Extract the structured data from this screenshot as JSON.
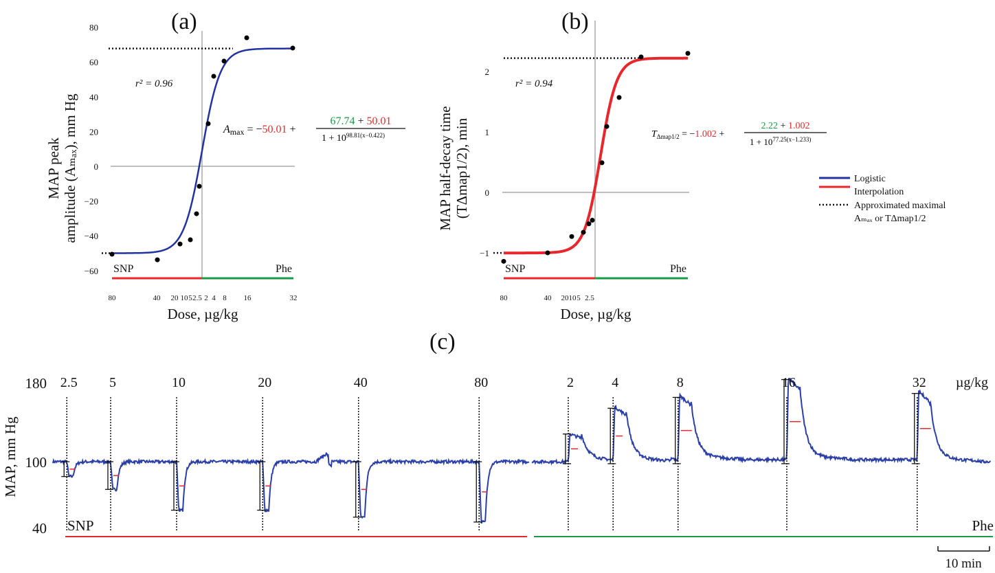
{
  "colors": {
    "logistic": "#2233a0",
    "interpolation": "#e8262b",
    "snp": "#e8262b",
    "phe": "#1a9a47",
    "trace": "#2a3fa8"
  },
  "legend": {
    "logistic": "Logistic",
    "interpolation": "Interpolation",
    "approx_line1": "Approximated maximal",
    "approx_line2": "Aₘₐₓ or TΔmap1/2"
  },
  "chart_data": [
    {
      "panel": "(a)",
      "type": "scatter+line",
      "ylabel_line1": "MAP peak",
      "ylabel_line2": "amplitude (Aₘₐₓ), mm Hg",
      "xlabel": "Dose, µg/kg",
      "yticks": [
        80,
        60,
        40,
        20,
        0,
        -20,
        -40,
        -60
      ],
      "ylim": [
        -60,
        80
      ],
      "xticks": [
        {
          "label": "80",
          "dose": -80
        },
        {
          "label": "40",
          "dose": -40
        },
        {
          "label": "20",
          "dose": -20
        },
        {
          "label": "10",
          "dose": -10
        },
        {
          "label": "5",
          "dose": -5
        },
        {
          "label": "2.5",
          "dose": -2.5
        },
        {
          "label": "2",
          "dose": 2
        },
        {
          "label": "4",
          "dose": 4
        },
        {
          "label": "8",
          "dose": 8
        },
        {
          "label": "16",
          "dose": 16
        },
        {
          "label": "32",
          "dose": 32
        }
      ],
      "points": [
        {
          "dose": -80,
          "y": -50.6
        },
        {
          "dose": -40,
          "y": -53.8
        },
        {
          "dose": -20,
          "y": -44.7
        },
        {
          "dose": -10,
          "y": -42.3
        },
        {
          "dose": -5,
          "y": -27.3
        },
        {
          "dose": -2.5,
          "y": -11.5
        },
        {
          "dose": 2,
          "y": 24.5
        },
        {
          "dose": 4,
          "y": 51.8
        },
        {
          "dose": 8,
          "y": 60.5
        },
        {
          "dose": 16,
          "y": 73.9
        },
        {
          "dose": 32,
          "y": 68
        }
      ],
      "fit": {
        "min": -50.01,
        "max": 67.74
      },
      "r2": "r² = 0.96",
      "eq": {
        "lhs": "A",
        "lhs_sub": "max",
        "eq": " = −",
        "a": "50.01",
        "plus": " + ",
        "num_a": "67.74",
        "num_plus": " + ",
        "num_b": "50.01",
        "den": "1 + 10",
        "exp": "98.81(x−0.422)"
      },
      "snp": "SNP",
      "phe": "Phe"
    },
    {
      "panel": "(b)",
      "type": "scatter+line",
      "ylabel_line1": "MAP half-decay time",
      "ylabel_line2": "(TΔmap1/2), min",
      "xlabel": "Dose, µg/kg",
      "yticks": [
        2,
        1,
        0,
        -1
      ],
      "ylim": [
        -1.2,
        2.4
      ],
      "xticks": [
        {
          "label": "80",
          "dose": -80
        },
        {
          "label": "40",
          "dose": -40
        },
        {
          "label": "20",
          "dose": -20
        },
        {
          "label": "10",
          "dose": -10
        },
        {
          "label": "5",
          "dose": -5
        },
        {
          "label": "2.5",
          "dose": -2.5
        }
      ],
      "points": [
        {
          "dose": -80,
          "y": -1.14
        },
        {
          "dose": -40,
          "y": -1.0
        },
        {
          "dose": -20,
          "y": -0.73
        },
        {
          "dose": -10,
          "y": -0.66
        },
        {
          "dose": -5,
          "y": -0.52
        },
        {
          "dose": -2.5,
          "y": -0.46
        },
        {
          "dose": 2,
          "y": 0.49
        },
        {
          "dose": 4,
          "y": 1.09
        },
        {
          "dose": 8,
          "y": 1.57
        },
        {
          "dose": 16,
          "y": 2.24
        },
        {
          "dose": 32,
          "y": 2.3
        }
      ],
      "fit": {
        "min": -1.002,
        "max": 2.22
      },
      "r2": "r² = 0.94",
      "eq": {
        "lhs": "T",
        "lhs_sub": "Δmap1/2",
        "eq": " = −",
        "a": "1.002",
        "plus": " + ",
        "num_a": "2.22",
        "num_plus": " + ",
        "num_b": "1.002",
        "den": "1 + 10",
        "exp": "77.25(x−1.233)"
      },
      "snp": "SNP",
      "phe": "Phe"
    },
    {
      "panel": "(c)",
      "type": "line",
      "ylabel": "MAP, mm Hg",
      "yticks": [
        180,
        100,
        40
      ],
      "ylim": [
        40,
        180
      ],
      "unit": "µg/kg",
      "scalebar": "10 min",
      "snp": "SNP",
      "phe": "Phe",
      "events": [
        {
          "label": "2.5",
          "drug": "SNP",
          "t": 2.7,
          "extreme": 85
        },
        {
          "label": "5",
          "drug": "SNP",
          "t": 11.2,
          "extreme": 72
        },
        {
          "label": "10",
          "drug": "SNP",
          "t": 24,
          "extreme": 51
        },
        {
          "label": "20",
          "drug": "SNP",
          "t": 40.7,
          "extreme": 51
        },
        {
          "label": "40",
          "drug": "SNP",
          "t": 59.3,
          "extreme": 44
        },
        {
          "label": "80",
          "drug": "SNP",
          "t": 82.7,
          "extreme": 39
        },
        {
          "label": "2",
          "drug": "Phe",
          "t": 100,
          "extreme": 128
        },
        {
          "label": "4",
          "drug": "Phe",
          "t": 108.7,
          "extreme": 154
        },
        {
          "label": "8",
          "drug": "Phe",
          "t": 121.3,
          "extreme": 165
        },
        {
          "label": "16",
          "drug": "Phe",
          "t": 142.4,
          "extreme": 183
        },
        {
          "label": "32",
          "drug": "Phe",
          "t": 167.7,
          "extreme": 169
        }
      ],
      "t_range": [
        0,
        182
      ]
    }
  ]
}
